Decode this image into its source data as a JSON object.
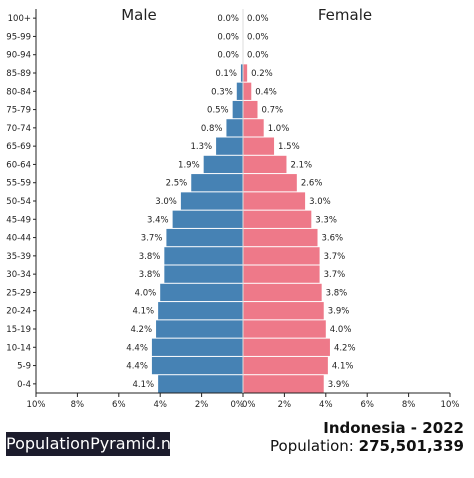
{
  "chart_data": {
    "type": "bar",
    "orientation": "horizontal-population-pyramid",
    "categories": [
      "100+",
      "95-99",
      "90-94",
      "85-89",
      "80-84",
      "75-79",
      "70-74",
      "65-69",
      "60-64",
      "55-59",
      "50-54",
      "45-49",
      "40-44",
      "35-39",
      "30-34",
      "25-29",
      "20-24",
      "15-19",
      "10-14",
      "5-9",
      "0-4"
    ],
    "series": [
      {
        "name": "Male",
        "color": "#4682b4",
        "values": [
          0.0,
          0.0,
          0.0,
          0.1,
          0.3,
          0.5,
          0.8,
          1.3,
          1.9,
          2.5,
          3.0,
          3.4,
          3.7,
          3.8,
          3.8,
          4.0,
          4.1,
          4.2,
          4.4,
          4.4,
          4.1
        ],
        "labels": [
          "0.0%",
          "0.0%",
          "0.0%",
          "0.1%",
          "0.3%",
          "0.5%",
          "0.8%",
          "1.3%",
          "1.9%",
          "2.5%",
          "3.0%",
          "3.4%",
          "3.7%",
          "3.8%",
          "3.8%",
          "4.0%",
          "4.1%",
          "4.2%",
          "4.4%",
          "4.4%",
          "4.1%"
        ]
      },
      {
        "name": "Female",
        "color": "#ee7989",
        "values": [
          0.0,
          0.0,
          0.0,
          0.2,
          0.4,
          0.7,
          1.0,
          1.5,
          2.1,
          2.6,
          3.0,
          3.3,
          3.6,
          3.7,
          3.7,
          3.8,
          3.9,
          4.0,
          4.2,
          4.1,
          3.9
        ],
        "labels": [
          "0.0%",
          "0.0%",
          "0.0%",
          "0.2%",
          "0.4%",
          "0.7%",
          "1.0%",
          "1.5%",
          "2.1%",
          "2.6%",
          "3.0%",
          "3.3%",
          "3.6%",
          "3.7%",
          "3.7%",
          "3.8%",
          "3.9%",
          "4.0%",
          "4.2%",
          "4.1%",
          "3.9%"
        ]
      }
    ],
    "xlim": [
      -10,
      10
    ],
    "x_ticks": [
      "10%",
      "8%",
      "6%",
      "4%",
      "2%",
      "0%",
      "0%",
      "2%",
      "4%",
      "6%",
      "8%",
      "10%"
    ],
    "grid": false
  },
  "brand": "PopulationPyramid.net",
  "country_year": "Indonesia - 2022",
  "population_label": "Population:",
  "population_value": "275,501,339"
}
